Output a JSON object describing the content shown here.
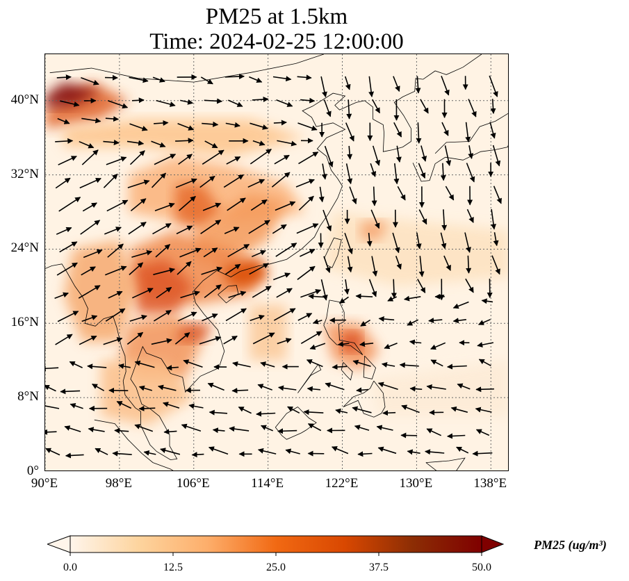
{
  "title": {
    "line1": "PM25 at 1.5km",
    "line2": "Time: 2024-02-25 12:00:00"
  },
  "map": {
    "extent_lon": [
      90,
      140
    ],
    "extent_lat": [
      0,
      45
    ],
    "lat_ticks": [
      {
        "value": 0,
        "label": "0°"
      },
      {
        "value": 8,
        "label": "8°N"
      },
      {
        "value": 16,
        "label": "16°N"
      },
      {
        "value": 24,
        "label": "24°N"
      },
      {
        "value": 32,
        "label": "32°N"
      },
      {
        "value": 40,
        "label": "40°N"
      }
    ],
    "lon_ticks": [
      {
        "value": 90,
        "label": "90°E"
      },
      {
        "value": 98,
        "label": "98°E"
      },
      {
        "value": 106,
        "label": "106°E"
      },
      {
        "value": 114,
        "label": "114°E"
      },
      {
        "value": 122,
        "label": "122°E"
      },
      {
        "value": 130,
        "label": "130°E"
      },
      {
        "value": 138,
        "label": "138°E"
      }
    ],
    "gridlines": "dotted",
    "field_variable": "PM25",
    "wind_vectors": true
  },
  "colorbar": {
    "title": "PM25 (ug/m³)",
    "ticks": [
      {
        "value": 0,
        "label": "0.0"
      },
      {
        "value": 12.5,
        "label": "12.5"
      },
      {
        "value": 25,
        "label": "25.0"
      },
      {
        "value": 37.5,
        "label": "37.5"
      },
      {
        "value": 50,
        "label": "50.0"
      }
    ],
    "range": [
      0,
      50
    ],
    "extend": "both",
    "colors": [
      "#fff5eb",
      "#fdd49e",
      "#fdae6b",
      "#f16913",
      "#d94801",
      "#8c2d04",
      "#7f0000"
    ]
  }
}
